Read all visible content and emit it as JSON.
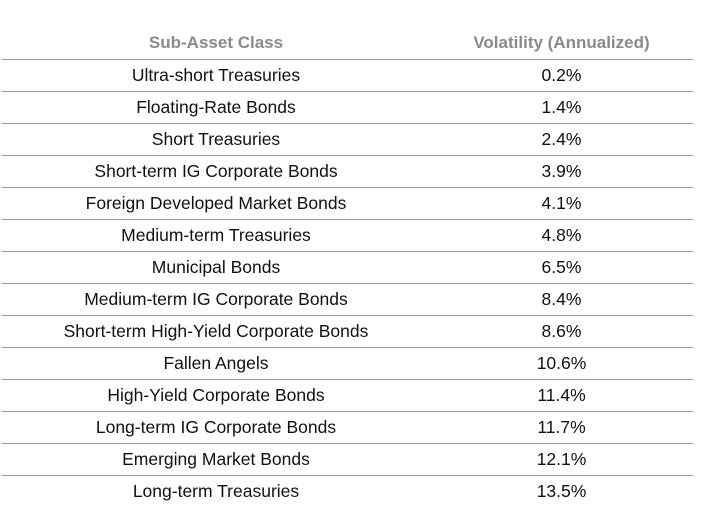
{
  "table": {
    "headers": [
      "Sub-Asset Class",
      "Volatility (Annualized)"
    ],
    "rows": [
      {
        "asset_class": "Ultra-short Treasuries",
        "volatility": "0.2%"
      },
      {
        "asset_class": "Floating-Rate Bonds",
        "volatility": "1.4%"
      },
      {
        "asset_class": "Short Treasuries",
        "volatility": "2.4%"
      },
      {
        "asset_class": "Short-term IG Corporate Bonds",
        "volatility": "3.9%"
      },
      {
        "asset_class": "Foreign Developed Market Bonds",
        "volatility": "4.1%"
      },
      {
        "asset_class": "Medium-term Treasuries",
        "volatility": "4.8%"
      },
      {
        "asset_class": "Municipal Bonds",
        "volatility": "6.5%"
      },
      {
        "asset_class": "Medium-term IG Corporate Bonds",
        "volatility": "8.4%"
      },
      {
        "asset_class": "Short-term High-Yield Corporate Bonds",
        "volatility": "8.6%"
      },
      {
        "asset_class": "Fallen Angels",
        "volatility": "10.6%"
      },
      {
        "asset_class": "High-Yield Corporate Bonds",
        "volatility": "11.4%"
      },
      {
        "asset_class": "Long-term IG Corporate Bonds",
        "volatility": "11.7%"
      },
      {
        "asset_class": "Emerging Market Bonds",
        "volatility": "12.1%"
      },
      {
        "asset_class": "Long-term Treasuries",
        "volatility": "13.5%"
      }
    ]
  }
}
